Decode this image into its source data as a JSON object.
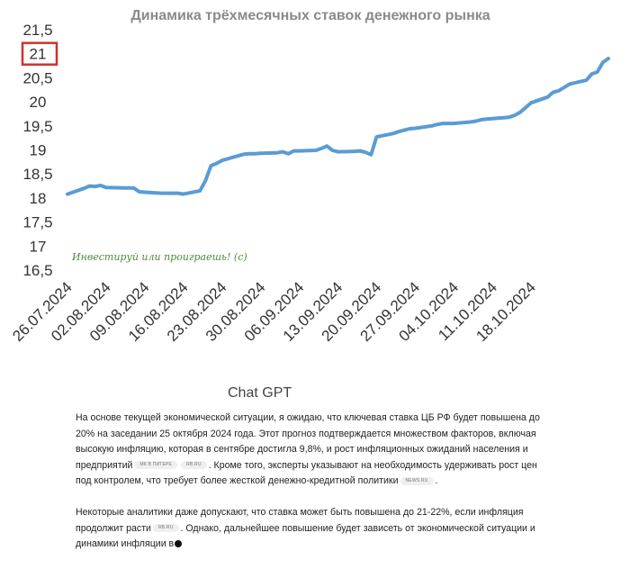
{
  "chart_data": {
    "type": "line",
    "title": "Динамика трёхмесячных ставок денежного рынка",
    "xlabel": "",
    "ylabel": "",
    "ylim": [
      16.5,
      21.5
    ],
    "yticks": [
      "21,5",
      "21",
      "20,5",
      "20",
      "19,5",
      "19",
      "18,5",
      "18",
      "17,5",
      "17",
      "16,5"
    ],
    "highlighted_ytick": "21",
    "xtick_labels": [
      "26.07.2024",
      "02.08.2024",
      "09.08.2024",
      "16.08.2024",
      "23.08.2024",
      "30.08.2024",
      "06.09.2024",
      "13.09.2024",
      "20.09.2024",
      "27.09.2024",
      "04.10.2024",
      "11.10.2024",
      "18.10.2024"
    ],
    "grid": false,
    "legend": "none",
    "line_color": "#5b9bd5",
    "highlight_color": "#d0312d",
    "watermark": "Инвестируй или проиграешь! (с)",
    "series": [
      {
        "points": [
          [
            "2024-07-26",
            18.08
          ],
          [
            "2024-07-29",
            18.2
          ],
          [
            "2024-07-30",
            18.25
          ],
          [
            "2024-07-31",
            18.24
          ],
          [
            "2024-08-01",
            18.26
          ],
          [
            "2024-08-02",
            18.22
          ],
          [
            "2024-08-05",
            18.21
          ],
          [
            "2024-08-06",
            18.21
          ],
          [
            "2024-08-07",
            18.21
          ],
          [
            "2024-08-08",
            18.13
          ],
          [
            "2024-08-09",
            18.12
          ],
          [
            "2024-08-12",
            18.1
          ],
          [
            "2024-08-13",
            18.1
          ],
          [
            "2024-08-14",
            18.1
          ],
          [
            "2024-08-15",
            18.1
          ],
          [
            "2024-08-16",
            18.08
          ],
          [
            "2024-08-19",
            18.15
          ],
          [
            "2024-08-20",
            18.36
          ],
          [
            "2024-08-21",
            18.67
          ],
          [
            "2024-08-22",
            18.72
          ],
          [
            "2024-08-23",
            18.78
          ],
          [
            "2024-08-26",
            18.88
          ],
          [
            "2024-08-27",
            18.91
          ],
          [
            "2024-08-28",
            18.92
          ],
          [
            "2024-08-29",
            18.92
          ],
          [
            "2024-08-30",
            18.93
          ],
          [
            "2024-09-02",
            18.94
          ],
          [
            "2024-09-03",
            18.96
          ],
          [
            "2024-09-04",
            18.92
          ],
          [
            "2024-09-05",
            18.98
          ],
          [
            "2024-09-06",
            18.98
          ],
          [
            "2024-09-09",
            18.99
          ],
          [
            "2024-09-10",
            19.03
          ],
          [
            "2024-09-11",
            19.08
          ],
          [
            "2024-09-12",
            18.99
          ],
          [
            "2024-09-13",
            18.96
          ],
          [
            "2024-09-16",
            18.97
          ],
          [
            "2024-09-17",
            18.98
          ],
          [
            "2024-09-18",
            18.95
          ],
          [
            "2024-09-19",
            18.9
          ],
          [
            "2024-09-20",
            19.27
          ],
          [
            "2024-09-23",
            19.34
          ],
          [
            "2024-09-24",
            19.38
          ],
          [
            "2024-09-25",
            19.41
          ],
          [
            "2024-09-26",
            19.44
          ],
          [
            "2024-09-27",
            19.45
          ],
          [
            "2024-09-30",
            19.5
          ],
          [
            "2024-10-01",
            19.53
          ],
          [
            "2024-10-02",
            19.55
          ],
          [
            "2024-10-03",
            19.55
          ],
          [
            "2024-10-04",
            19.55
          ],
          [
            "2024-10-07",
            19.58
          ],
          [
            "2024-10-08",
            19.6
          ],
          [
            "2024-10-09",
            19.63
          ],
          [
            "2024-10-10",
            19.64
          ],
          [
            "2024-10-11",
            19.65
          ],
          [
            "2024-10-14",
            19.68
          ],
          [
            "2024-10-15",
            19.72
          ],
          [
            "2024-10-16",
            19.78
          ],
          [
            "2024-10-17",
            19.88
          ],
          [
            "2024-10-18",
            19.98
          ],
          [
            "2024-10-21",
            20.1
          ],
          [
            "2024-10-22",
            20.2
          ],
          [
            "2024-10-23",
            20.23
          ],
          [
            "2024-10-24",
            20.3
          ],
          [
            "2024-10-25",
            20.37
          ],
          [
            "2024-10-28",
            20.45
          ],
          [
            "2024-10-29",
            20.58
          ],
          [
            "2024-10-30",
            20.62
          ],
          [
            "2024-10-31",
            20.82
          ],
          [
            "2024-11-01",
            20.9
          ]
        ]
      }
    ]
  },
  "gpt": {
    "heading": "Chat GPT",
    "p1_a": "На основе текущей экономической ситуации, я ожидаю, что ключевая ставка ЦБ РФ будет повышена до 20% на заседании 25 октября 2024 года. Этот прогноз подтверждается множеством факторов, включая высокую инфляцию, которая в сентябре достигла 9,8%, и рост инфляционных ожиданий населения и предприятий",
    "p1_src1": "МК В ПИТЕРЕ",
    "p1_src2": "RB.RU",
    "p1_b": ". Кроме того, эксперты указывают на необходимость удерживать рост цен под контролем, что требует более жесткой денежно-кредитной политики",
    "p1_src3": "NEWS.RU",
    "p1_c": ".",
    "p2_a": "Некоторые аналитики даже допускают, что ставка может быть повышена до 21-22%, если инфляция продолжит расти",
    "p2_src1": "RB.RU",
    "p2_b": ". Однако, дальнейшее повышение будет зависеть от экономической ситуации и динамики инфляции в"
  }
}
